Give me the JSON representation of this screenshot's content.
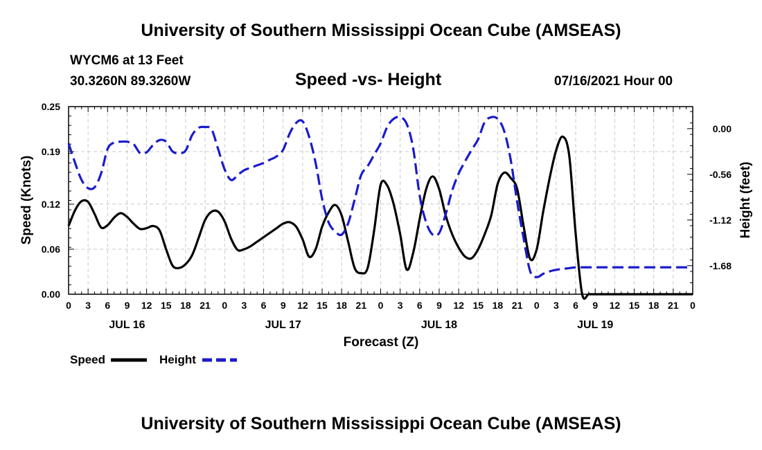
{
  "page": {
    "top_title": "University of Southern Mississippi Ocean Cube (AMSEAS)",
    "bottom_title": "University of Southern Mississippi Ocean Cube (AMSEAS)",
    "station": "WYCM6 at 13 Feet",
    "location": "30.3260N  89.3260W",
    "chart_title": "Speed -vs- Height",
    "run_time": "07/16/2021 Hour 00"
  },
  "legend": {
    "speed_label": "Speed",
    "height_label": "Height"
  },
  "colors": {
    "speed": "#000000",
    "height": "#1a1acc",
    "grid": "#c8c8c8"
  },
  "chart_data": {
    "type": "line",
    "title": "Speed -vs- Height",
    "xlabel": "Forecast (Z)",
    "ylabel_left": "Speed (Knots)",
    "ylabel_right": "Height (feet)",
    "x_range_hours": [
      0,
      96
    ],
    "ylim_left": [
      0,
      0.25
    ],
    "ylim_right": [
      -2.03,
      0.27
    ],
    "x_ticks": [
      0,
      3,
      6,
      9,
      12,
      15,
      18,
      21,
      24,
      27,
      30,
      33,
      36,
      39,
      42,
      45,
      48,
      51,
      54,
      57,
      60,
      63,
      66,
      69,
      72,
      75,
      78,
      81,
      84,
      87,
      90,
      93,
      96
    ],
    "x_tick_labels": [
      "0",
      "3",
      "6",
      "9",
      "12",
      "15",
      "18",
      "21",
      "0",
      "3",
      "6",
      "9",
      "12",
      "15",
      "18",
      "21",
      "0",
      "3",
      "6",
      "9",
      "12",
      "15",
      "18",
      "21",
      "0",
      "3",
      "6",
      "9",
      "12",
      "15",
      "18",
      "21",
      "0"
    ],
    "date_labels": [
      {
        "x": 9,
        "label": "JUL 16"
      },
      {
        "x": 33,
        "label": "JUL 17"
      },
      {
        "x": 57,
        "label": "JUL 18"
      },
      {
        "x": 81,
        "label": "JUL 19"
      }
    ],
    "y_left_ticks": [
      0.0,
      0.06,
      0.12,
      0.19,
      0.25
    ],
    "y_left_tick_labels": [
      "0.00",
      "0.06",
      "0.12",
      "0.19",
      "0.25"
    ],
    "y_right_ticks": [
      0.0,
      -0.56,
      -1.12,
      -1.68
    ],
    "y_right_tick_labels": [
      "0.00",
      "-0.56",
      "-1.12",
      "-1.68"
    ],
    "series": [
      {
        "name": "Speed",
        "axis": "left",
        "style": "solid",
        "x": [
          0,
          1,
          2,
          3,
          4,
          5,
          6,
          7,
          8,
          9,
          10,
          11,
          12,
          13,
          14,
          15,
          16,
          17,
          18,
          19,
          20,
          21,
          22,
          23,
          24,
          25,
          26,
          27,
          28,
          29,
          30,
          31,
          32,
          33,
          34,
          35,
          36,
          37,
          38,
          39,
          40,
          41,
          42,
          43,
          44,
          45,
          46,
          47,
          48,
          49,
          50,
          51,
          52,
          53,
          54,
          55,
          56,
          57,
          58,
          59,
          60,
          61,
          62,
          63,
          64,
          65,
          66,
          67,
          68,
          69,
          70,
          71,
          72,
          73,
          74,
          75,
          76,
          77,
          78,
          79,
          80,
          81,
          82,
          83,
          84,
          85,
          86,
          87,
          88,
          89,
          90,
          91,
          92,
          93,
          94,
          95,
          96
        ],
        "values": [
          0.091,
          0.112,
          0.124,
          0.123,
          0.107,
          0.089,
          0.092,
          0.102,
          0.108,
          0.103,
          0.094,
          0.087,
          0.088,
          0.091,
          0.085,
          0.06,
          0.038,
          0.035,
          0.04,
          0.052,
          0.075,
          0.099,
          0.11,
          0.11,
          0.097,
          0.074,
          0.059,
          0.06,
          0.064,
          0.07,
          0.076,
          0.082,
          0.088,
          0.094,
          0.096,
          0.09,
          0.073,
          0.05,
          0.06,
          0.09,
          0.109,
          0.119,
          0.105,
          0.07,
          0.035,
          0.028,
          0.035,
          0.085,
          0.146,
          0.145,
          0.12,
          0.08,
          0.033,
          0.055,
          0.1,
          0.14,
          0.157,
          0.14,
          0.105,
          0.08,
          0.062,
          0.05,
          0.048,
          0.06,
          0.08,
          0.105,
          0.147,
          0.162,
          0.155,
          0.14,
          0.09,
          0.047,
          0.06,
          0.11,
          0.155,
          0.192,
          0.21,
          0.185,
          0.08,
          0.0,
          0.0,
          0.0,
          0.0,
          0.0,
          0.0,
          0.0,
          0.0,
          0.0,
          0.0,
          0.0,
          0.0,
          0.0,
          0.0,
          0.0,
          0.0,
          0.0,
          0.0
        ]
      },
      {
        "name": "Height",
        "axis": "right",
        "style": "dashed",
        "x": [
          0,
          1,
          2,
          3,
          4,
          5,
          6,
          7,
          8,
          9,
          10,
          11,
          12,
          13,
          14,
          15,
          16,
          17,
          18,
          19,
          20,
          21,
          22,
          23,
          24,
          25,
          26,
          27,
          28,
          29,
          30,
          31,
          32,
          33,
          34,
          35,
          36,
          37,
          38,
          39,
          40,
          41,
          42,
          43,
          44,
          45,
          46,
          47,
          48,
          49,
          50,
          51,
          52,
          53,
          54,
          55,
          56,
          57,
          58,
          59,
          60,
          61,
          62,
          63,
          64,
          65,
          66,
          67,
          68,
          69,
          70,
          71,
          72,
          73,
          74,
          75,
          76,
          77,
          78,
          79,
          80,
          81,
          82,
          83,
          84,
          85,
          86,
          87,
          88,
          89,
          90,
          91,
          92,
          93,
          94,
          95,
          96
        ],
        "values": [
          -0.18,
          -0.42,
          -0.63,
          -0.73,
          -0.72,
          -0.55,
          -0.25,
          -0.17,
          -0.16,
          -0.16,
          -0.19,
          -0.3,
          -0.29,
          -0.2,
          -0.14,
          -0.16,
          -0.28,
          -0.3,
          -0.27,
          -0.08,
          0.01,
          0.02,
          -0.01,
          -0.25,
          -0.5,
          -0.63,
          -0.57,
          -0.51,
          -0.48,
          -0.45,
          -0.42,
          -0.38,
          -0.34,
          -0.26,
          -0.06,
          0.07,
          0.09,
          -0.1,
          -0.42,
          -0.86,
          -1.15,
          -1.26,
          -1.3,
          -1.16,
          -0.87,
          -0.57,
          -0.46,
          -0.32,
          -0.18,
          0.02,
          0.12,
          0.14,
          0.06,
          -0.24,
          -0.82,
          -1.15,
          -1.3,
          -1.28,
          -1.05,
          -0.76,
          -0.55,
          -0.4,
          -0.26,
          -0.13,
          0.08,
          0.14,
          0.12,
          -0.03,
          -0.38,
          -0.9,
          -1.35,
          -1.75,
          -1.82,
          -1.78,
          -1.75,
          -1.73,
          -1.72,
          -1.71,
          -1.7,
          -1.7,
          -1.7,
          -1.7,
          -1.7,
          -1.7,
          -1.7,
          -1.7,
          -1.7,
          -1.7,
          -1.7,
          -1.7,
          -1.7,
          -1.7,
          -1.7,
          -1.7,
          -1.7,
          -1.7,
          -1.7
        ]
      }
    ]
  }
}
